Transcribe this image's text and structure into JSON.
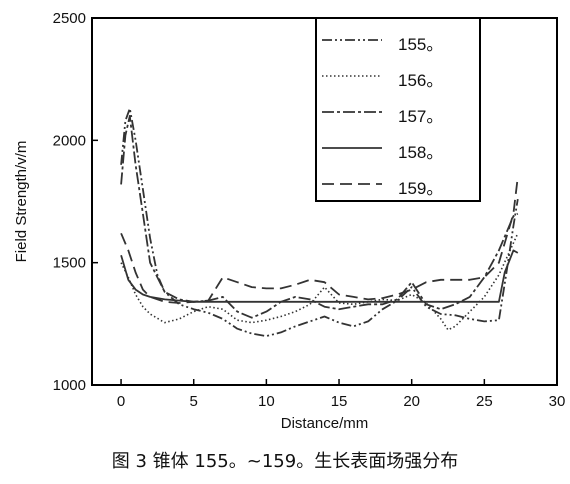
{
  "caption": "图 3 锥体 155。~159。生长表面场强分布",
  "chart_data": {
    "type": "line",
    "title": "",
    "xlabel": "Distance/mm",
    "ylabel": "Field  Strength/v/m",
    "xlim": [
      -2,
      30
    ],
    "ylim": [
      1000,
      2500
    ],
    "xticks": [
      "0",
      "5",
      "10",
      "15",
      "20",
      "25",
      "30"
    ],
    "yticks": [
      "1000",
      "1500",
      "2000",
      "2500"
    ],
    "grid": false,
    "legend_position": "top-right",
    "series": [
      {
        "name": "155。",
        "style": "dash-dot-dot",
        "x": [
          0,
          0.3,
          0.6,
          1,
          1.5,
          2,
          2.5,
          3,
          4,
          5,
          6,
          7,
          8,
          9,
          10,
          11,
          12,
          13,
          14,
          15,
          16,
          17,
          18,
          19,
          20,
          21,
          22,
          23,
          24,
          25,
          26,
          26.5,
          27,
          27.3
        ],
        "values": [
          1900,
          2080,
          2130,
          2000,
          1800,
          1600,
          1450,
          1380,
          1330,
          1310,
          1295,
          1270,
          1230,
          1210,
          1200,
          1215,
          1240,
          1260,
          1280,
          1255,
          1240,
          1260,
          1310,
          1345,
          1400,
          1320,
          1290,
          1285,
          1270,
          1260,
          1265,
          1450,
          1650,
          1760
        ]
      },
      {
        "name": "156。",
        "style": "dotted",
        "x": [
          0,
          0.5,
          1,
          1.5,
          2,
          3,
          4,
          5,
          6,
          7,
          8,
          9,
          10,
          11,
          12,
          13,
          14,
          15,
          16,
          17,
          18,
          19,
          20,
          21,
          22,
          22.5,
          23,
          24,
          25,
          26,
          27,
          27.3
        ],
        "values": [
          1500,
          1440,
          1370,
          1320,
          1290,
          1255,
          1270,
          1300,
          1320,
          1310,
          1265,
          1255,
          1265,
          1280,
          1300,
          1330,
          1400,
          1335,
          1330,
          1340,
          1350,
          1345,
          1370,
          1335,
          1270,
          1225,
          1240,
          1300,
          1360,
          1450,
          1580,
          1620
        ]
      },
      {
        "name": "157。",
        "style": "dash-dot",
        "x": [
          0,
          0.3,
          0.6,
          1,
          1.5,
          2,
          3,
          4,
          5,
          6,
          7,
          8,
          9,
          10,
          11,
          12,
          13,
          14,
          15,
          16,
          17,
          18,
          19,
          20,
          21,
          22,
          23,
          24,
          25,
          26,
          27,
          27.3
        ],
        "values": [
          1820,
          2020,
          2100,
          1900,
          1700,
          1500,
          1380,
          1350,
          1340,
          1345,
          1360,
          1300,
          1275,
          1300,
          1340,
          1360,
          1350,
          1320,
          1310,
          1320,
          1330,
          1330,
          1350,
          1420,
          1330,
          1310,
          1330,
          1360,
          1440,
          1550,
          1690,
          1700
        ]
      },
      {
        "name": "158。",
        "style": "solid",
        "x": [
          0,
          0.5,
          1,
          1.5,
          2,
          3,
          4,
          5,
          8,
          10,
          12,
          14,
          16,
          18,
          20,
          22,
          24,
          26,
          26.4,
          27,
          27.3
        ],
        "values": [
          1530,
          1430,
          1390,
          1370,
          1360,
          1350,
          1345,
          1340,
          1340,
          1340,
          1340,
          1340,
          1340,
          1340,
          1340,
          1340,
          1340,
          1340,
          1460,
          1550,
          1540
        ]
      },
      {
        "name": "159。",
        "style": "dashed",
        "x": [
          0,
          0.5,
          1,
          1.5,
          2,
          3,
          4,
          5,
          6,
          7,
          8,
          9,
          10,
          11,
          12,
          13,
          14,
          15,
          16,
          17,
          18,
          19,
          20,
          21,
          22,
          23,
          24,
          25,
          26,
          27,
          27.3
        ],
        "values": [
          1620,
          1550,
          1460,
          1390,
          1360,
          1340,
          1335,
          1340,
          1345,
          1440,
          1420,
          1400,
          1395,
          1395,
          1410,
          1430,
          1420,
          1370,
          1360,
          1350,
          1355,
          1370,
          1390,
          1420,
          1430,
          1430,
          1430,
          1440,
          1500,
          1700,
          1850
        ]
      }
    ]
  }
}
